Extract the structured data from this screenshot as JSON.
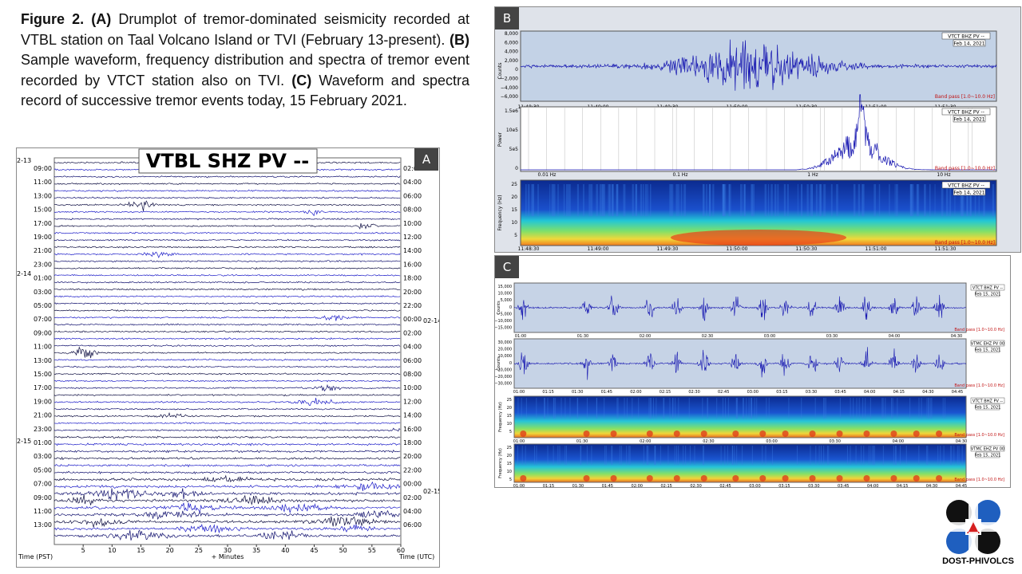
{
  "caption": {
    "figure": "Figure 2.",
    "a_tag": "(A)",
    "a_text": "Drumplot of tremor-dominated seismicity recorded at VTBL station on Taal Volcano Island or TVI (February 13-present).",
    "b_tag": "(B)",
    "b_text": "Sample waveform, frequency distribution and spectra of tremor event recorded by VTCT station also on TVI.",
    "c_tag": "(C)",
    "c_text": "Waveform and spectra record of successive tremor events today, 15 February 2021."
  },
  "panel_a": {
    "label": "A",
    "title": "VTBL SHZ PV --",
    "left_ticks": [
      "09:00",
      "11:00",
      "13:00",
      "15:00",
      "17:00",
      "19:00",
      "21:00",
      "23:00",
      "01:00",
      "03:00",
      "05:00",
      "07:00",
      "09:00",
      "11:00",
      "13:00",
      "15:00",
      "17:00",
      "19:00",
      "21:00",
      "23:00",
      "01:00",
      "03:00",
      "05:00",
      "07:00",
      "09:00",
      "11:00",
      "13:00"
    ],
    "right_ticks": [
      "02:00",
      "04:00",
      "06:00",
      "08:00",
      "10:00",
      "12:00",
      "14:00",
      "16:00",
      "18:00",
      "20:00",
      "22:00",
      "00:00",
      "02:00",
      "04:00",
      "06:00",
      "08:00",
      "10:00",
      "12:00",
      "14:00",
      "16:00",
      "18:00",
      "20:00",
      "22:00",
      "00:00",
      "02:00",
      "04:00",
      "06:00"
    ],
    "date_left": [
      "2-13",
      "2-14",
      "2-15"
    ],
    "date_right": [
      "02-14",
      "02-15"
    ],
    "x_ticks": [
      "5",
      "10",
      "15",
      "20",
      "25",
      "30",
      "35",
      "40",
      "45",
      "50",
      "55",
      "60"
    ],
    "xlabel": "+ Minutes",
    "left_axis": "Time (PST)",
    "right_axis": "Time (UTC)"
  },
  "panel_b": {
    "label": "B",
    "station": "VTCT BHZ PV --",
    "date": "Feb 14, 2021",
    "filter": "Band pass [1.0~10.0 Hz]",
    "wave_y": [
      "8,000",
      "6,000",
      "4,000",
      "2,000",
      "0",
      "−2,000",
      "−4,000",
      "−6,000"
    ],
    "wave_ylabel": "Counts",
    "time_ticks": [
      "11:48:30",
      "11:49:00",
      "11:49:30",
      "11:50:00",
      "11:50:30",
      "11:51:00",
      "11:51:30"
    ],
    "power_y": [
      "1.5e6",
      "10e5",
      "5e5",
      "0"
    ],
    "power_ylabel": "Power",
    "freq_ticks": [
      "0.01 Hz",
      "0.1 Hz",
      "1 Hz",
      "10 Hz"
    ],
    "spec_y": [
      "25",
      "20",
      "15",
      "10",
      "5"
    ],
    "spec_ylabel": "Frequency (Hz)"
  },
  "panel_c": {
    "label": "C",
    "stations": [
      "VTCT BHZ PV --",
      "VTMC EHZ PV 00",
      "VTCT BHZ PV --",
      "VTMC EHZ PV 00"
    ],
    "date": "Feb 15, 2021",
    "filter": "Band pass [1.0~10.0 Hz]",
    "wave1_y": [
      "15,000",
      "10,000",
      "5,000",
      "0",
      "−5,000",
      "−10,000",
      "−15,000"
    ],
    "wave2_y": [
      "30,000",
      "20,000",
      "10,000",
      "0",
      "−10,000",
      "−20,000",
      "−30,000"
    ],
    "ylabel": "Counts",
    "spec_ylabel": "Frequency (Hz)",
    "spec_y": [
      "25",
      "20",
      "15",
      "10",
      "5"
    ],
    "ticks1": [
      "01:00",
      "01:30",
      "02:00",
      "02:30",
      "03:00",
      "03:30",
      "04:00",
      "04:30"
    ],
    "ticks2": [
      "01:00",
      "01:15",
      "01:30",
      "01:45",
      "02:00",
      "02:15",
      "02:30",
      "02:45",
      "03:00",
      "03:15",
      "03:30",
      "03:45",
      "04:00",
      "04:15",
      "04:30",
      "04:45"
    ]
  },
  "logo": {
    "text": "DOST-PHIVOLCS"
  },
  "colors": {
    "trace": "#1a1aa8",
    "trace_dark": "#0a0a3a",
    "panel_bg": "#c6d3e6",
    "spec_blue": "#0b2a8f"
  }
}
